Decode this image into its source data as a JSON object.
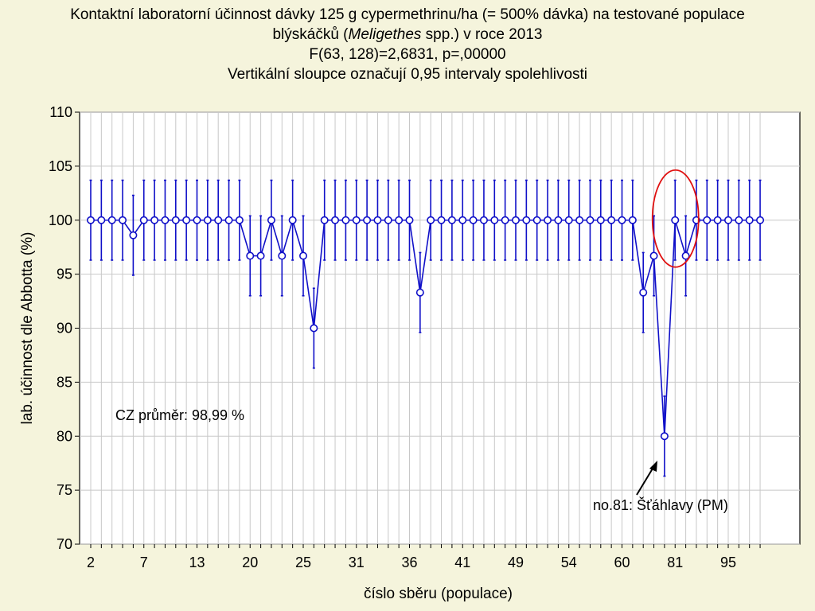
{
  "chart_data": {
    "type": "line",
    "title_lines": [
      "Kontaktní laboratorní účinnost dávky 125 g cypermethrinu/ha (= 500% dávka) na testované populace",
      "blýskáčků (",
      "Meligethes",
      " spp.) v roce 2013",
      "F(63, 128)=2,6831, p=,00000",
      "Vertikální sloupce označují 0,95 intervaly spolehlivosti"
    ],
    "xlabel": "číslo sběru (populace)",
    "ylabel": "lab. účinnost dle Abbotta (%)",
    "ylim": [
      70,
      110
    ],
    "yticks": [
      70,
      75,
      80,
      85,
      90,
      95,
      100,
      105,
      110
    ],
    "xtick_labels": [
      "2",
      "7",
      "13",
      "20",
      "25",
      "31",
      "36",
      "41",
      "49",
      "54",
      "60",
      "81",
      "95"
    ],
    "xtick_label_every": 5,
    "grid": true,
    "series": [
      {
        "values": [
          100,
          100,
          100,
          100,
          98.6,
          100,
          100,
          100,
          100,
          100,
          100,
          100,
          100,
          100,
          100,
          96.7,
          96.7,
          100,
          96.7,
          100,
          96.7,
          90,
          100,
          100,
          100,
          100,
          100,
          100,
          100,
          100,
          100,
          93.3,
          100,
          100,
          100,
          100,
          100,
          100,
          100,
          100,
          100,
          100,
          100,
          100,
          100,
          100,
          100,
          100,
          100,
          100,
          100,
          100,
          93.3,
          96.7,
          80,
          100,
          96.7,
          100,
          100,
          100,
          100,
          100,
          100,
          100
        ],
        "ci_half": [
          3.7,
          3.7,
          3.7,
          3.7,
          3.7,
          3.7,
          3.7,
          3.7,
          3.7,
          3.7,
          3.7,
          3.7,
          3.7,
          3.7,
          3.7,
          3.7,
          3.7,
          3.7,
          3.7,
          3.7,
          3.7,
          3.7,
          3.7,
          3.7,
          3.7,
          3.7,
          3.7,
          3.7,
          3.7,
          3.7,
          3.7,
          3.7,
          3.7,
          3.7,
          3.7,
          3.7,
          3.7,
          3.7,
          3.7,
          3.7,
          3.7,
          3.7,
          3.7,
          3.7,
          3.7,
          3.7,
          3.7,
          3.7,
          3.7,
          3.7,
          3.7,
          3.7,
          3.7,
          3.7,
          3.7,
          3.7,
          3.7,
          3.7,
          3.7,
          3.7,
          3.7,
          3.7,
          3.7,
          3.7
        ],
        "color": "#1010c8"
      }
    ],
    "annotations": {
      "mean_label": "CZ průměr: 98,99 %",
      "highlight_label": "no.81: Šťáhlavy (PM)",
      "highlight_index": 55,
      "highlight_color": "#e01010",
      "arrow_color": "#000000"
    },
    "colors": {
      "background": "#f5f4dc",
      "plot_background": "#ffffff",
      "grid": "#c8c8c8"
    }
  }
}
